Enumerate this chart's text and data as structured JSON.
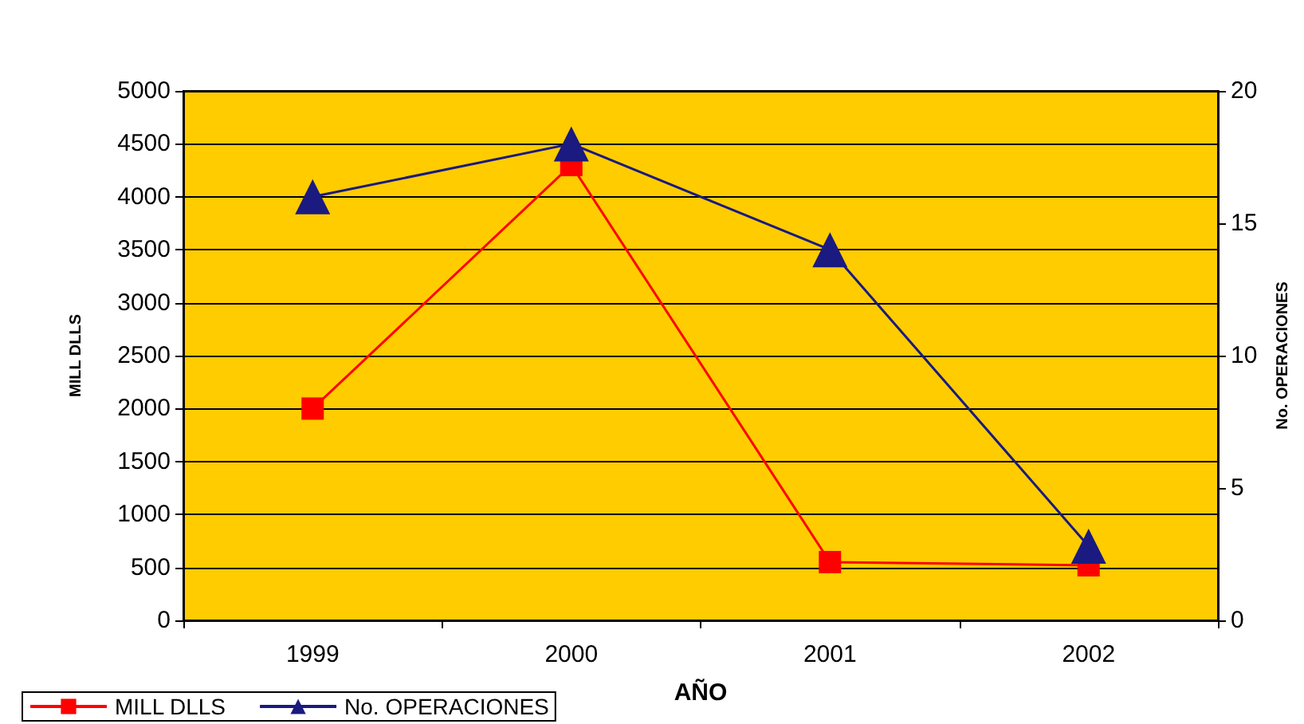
{
  "chart_data": {
    "type": "line",
    "xlabel": "AÑO",
    "ylabel": "MILL DLLS",
    "y2label": "No. OPERACIONES",
    "categories": [
      "1999",
      "2000",
      "2001",
      "2002"
    ],
    "series": [
      {
        "name": "MILL DLLS",
        "color": "#ff0000",
        "marker": "square",
        "values": [
          2000,
          4300,
          550,
          520
        ]
      },
      {
        "name": "No. OPERACIONES",
        "color": "#1a1a80",
        "marker": "triangle",
        "axis": "y2",
        "values": [
          16,
          18,
          14,
          2.8
        ]
      }
    ],
    "ylim": [
      0,
      5000
    ],
    "yticks": [
      0,
      500,
      1000,
      1500,
      2000,
      2500,
      3000,
      3500,
      4000,
      4500,
      5000
    ],
    "y2lim": [
      0,
      20
    ],
    "y2ticks": [
      0,
      5,
      10,
      15,
      20
    ],
    "grid": "y",
    "legend": "bottom left",
    "line_style": "solid"
  }
}
